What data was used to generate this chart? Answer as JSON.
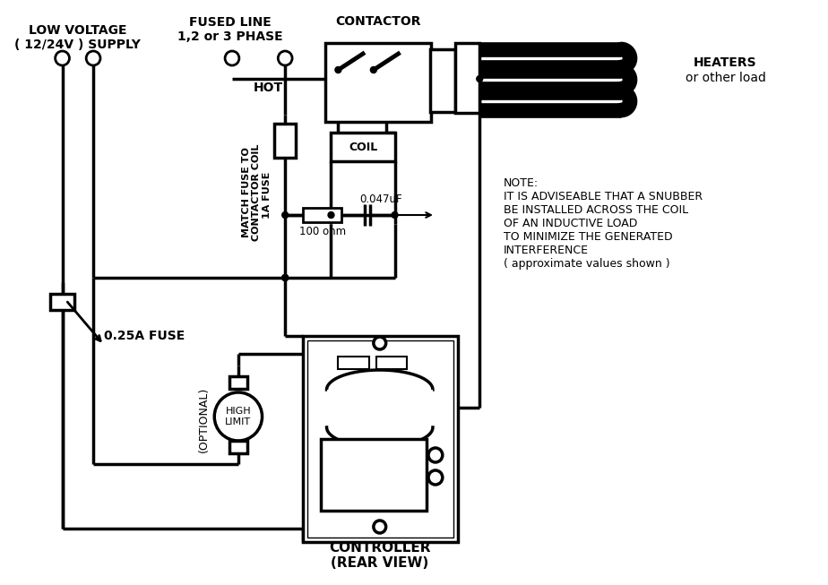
{
  "bg": "#ffffff",
  "lc": "#000000",
  "lv_label": "LOW VOLTAGE\n( 12/24V ) SUPPLY",
  "fused_label": "FUSED LINE\n1,2 or 3 PHASE",
  "contactor_label": "CONTACTOR",
  "heaters_label": "HEATERS\nor other load",
  "hot_label": "HOT",
  "coil_label": "COIL",
  "cap_label": "0.047uF",
  "res_label": "100 ohm",
  "match_fuse_label": "MATCH FUSE TO\nCONTACTOR COIL",
  "fuse1a_label": "1A FUSE",
  "fuse025_label": "0.25A FUSE",
  "optional_label": "(OPTIONAL)",
  "highlimit_label": "HIGH\nLIMIT",
  "controller_label": "CONTROLLER\n(REAR VIEW)",
  "note_label": "NOTE:\nIT IS ADVISEABLE THAT A SNUBBER\nBE INSTALLED ACROSS THE COIL\nOF AN INDUCTIVE LOAD\nTO MINIMIZE THE GENERATED\nINTERFERENCE\n( approximate values shown )"
}
